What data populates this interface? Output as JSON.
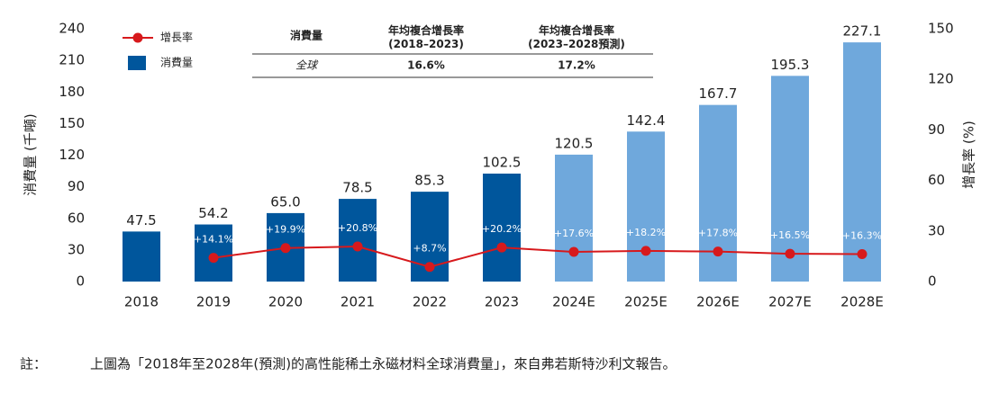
{
  "chart_data": {
    "type": "bar",
    "categories": [
      "2018",
      "2019",
      "2020",
      "2021",
      "2022",
      "2023",
      "2024E",
      "2025E",
      "2026E",
      "2027E",
      "2028E"
    ],
    "series": [
      {
        "name": "消費量",
        "type": "bar",
        "colors": [
          "#00569c",
          "#00569c",
          "#00569c",
          "#00569c",
          "#00569c",
          "#00569c",
          "#6fa8dc",
          "#6fa8dc",
          "#6fa8dc",
          "#6fa8dc",
          "#6fa8dc"
        ],
        "values": [
          47.5,
          54.2,
          65.0,
          78.5,
          85.3,
          102.5,
          120.5,
          142.4,
          167.7,
          195.3,
          227.1
        ],
        "value_labels": [
          "47.5",
          "54.2",
          "65.0",
          "78.5",
          "85.3",
          "102.5",
          "120.5",
          "142.4",
          "167.7",
          "195.3",
          "227.1"
        ]
      },
      {
        "name": "增長率",
        "type": "line",
        "axis": "y2",
        "color": "#d7191c",
        "values": [
          null,
          14.1,
          19.9,
          20.8,
          8.7,
          20.2,
          17.6,
          18.2,
          17.8,
          16.5,
          16.3
        ],
        "value_labels": [
          null,
          "+14.1%",
          "+19.9%",
          "+20.8%",
          "+8.7%",
          "+20.2%",
          "+17.6%",
          "+18.2%",
          "+17.8%",
          "+16.5%",
          "+16.3%"
        ]
      }
    ],
    "y_label": "消費量 (千噸)",
    "y2_label": "增長率 (%)",
    "ylim": [
      0,
      240
    ],
    "yticks": [
      0,
      30,
      60,
      90,
      120,
      150,
      180,
      210,
      240
    ],
    "y2lim": [
      0,
      150
    ],
    "y2ticks": [
      0,
      30,
      60,
      90,
      120,
      150
    ]
  },
  "table": {
    "header": [
      "消費量",
      "年均複合增長率\n(2018–2023)",
      "年均複合增長率\n(2023–2028預測)"
    ],
    "rows": [
      [
        "全球",
        "16.6%",
        "17.2%"
      ]
    ]
  },
  "note": {
    "label": "註：",
    "text": "上圖為「2018年至2028年(預測)的高性能稀土永磁材料全球消費量」，來自弗若斯特沙利文報告。"
  }
}
